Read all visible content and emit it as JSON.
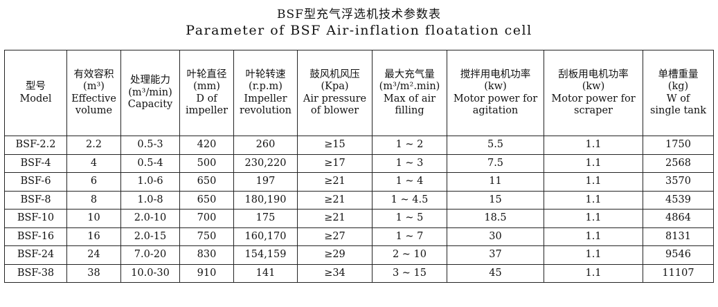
{
  "title": {
    "zh": "BSF型充气浮选机技术参数表",
    "en": "Parameter of BSF Air-inflation floatation cell"
  },
  "table": {
    "headers": [
      [
        "型号",
        "Model"
      ],
      [
        "有效容积",
        "(m³)",
        "Effective",
        "volume"
      ],
      [
        "处理能力",
        "(m³/min)",
        "Capacity"
      ],
      [
        "叶轮直径",
        "(mm)",
        "D of",
        "impeller"
      ],
      [
        "叶轮转速",
        "(r.p.m)",
        "Impeller",
        "revolution"
      ],
      [
        "鼓风机风压",
        "(Kpa)",
        "Air pressure",
        "of blower"
      ],
      [
        "最大充气量",
        "(m³/m².min)",
        "Max of air",
        "filling"
      ],
      [
        "搅拌用电机功率",
        "(kw)",
        "Motor power for",
        "agitation"
      ],
      [
        "刮板用电机功率",
        "(kw)",
        "Motor power for",
        "scraper"
      ],
      [
        "单槽重量",
        "(kg)",
        "W of",
        "single tank"
      ]
    ],
    "rows": [
      [
        "BSF-2.2",
        "2.2",
        "0.5-3",
        "420",
        "260",
        "≥15",
        "1 ~ 2",
        "5.5",
        "1.1",
        "1750"
      ],
      [
        "BSF-4",
        "4",
        "0.5-4",
        "500",
        "230,220",
        "≥17",
        "1 ~ 3",
        "7.5",
        "1.1",
        "2568"
      ],
      [
        "BSF-6",
        "6",
        "1.0-6",
        "650",
        "197",
        "≥21",
        "1 ~ 4",
        "11",
        "1.1",
        "3570"
      ],
      [
        "BSF-8",
        "8",
        "1.0-8",
        "650",
        "180,190",
        "≥21",
        "1 ~ 4.5",
        "15",
        "1.1",
        "4539"
      ],
      [
        "BSF-10",
        "10",
        "2.0-10",
        "700",
        "175",
        "≥21",
        "1 ~ 5",
        "18.5",
        "1.1",
        "4864"
      ],
      [
        "BSF-16",
        "16",
        "2.0-15",
        "750",
        "160,170",
        "≥27",
        "1 ~ 7",
        "30",
        "1.1",
        "8131"
      ],
      [
        "BSF-24",
        "24",
        "7.0-20",
        "830",
        "154,159",
        "≥29",
        "2 ~ 10",
        "37",
        "1.1",
        "9546"
      ],
      [
        "BSF-38",
        "38",
        "10.0-30",
        "910",
        "141",
        "≥34",
        "3 ~ 15",
        "45",
        "1.1",
        "11107"
      ]
    ]
  }
}
